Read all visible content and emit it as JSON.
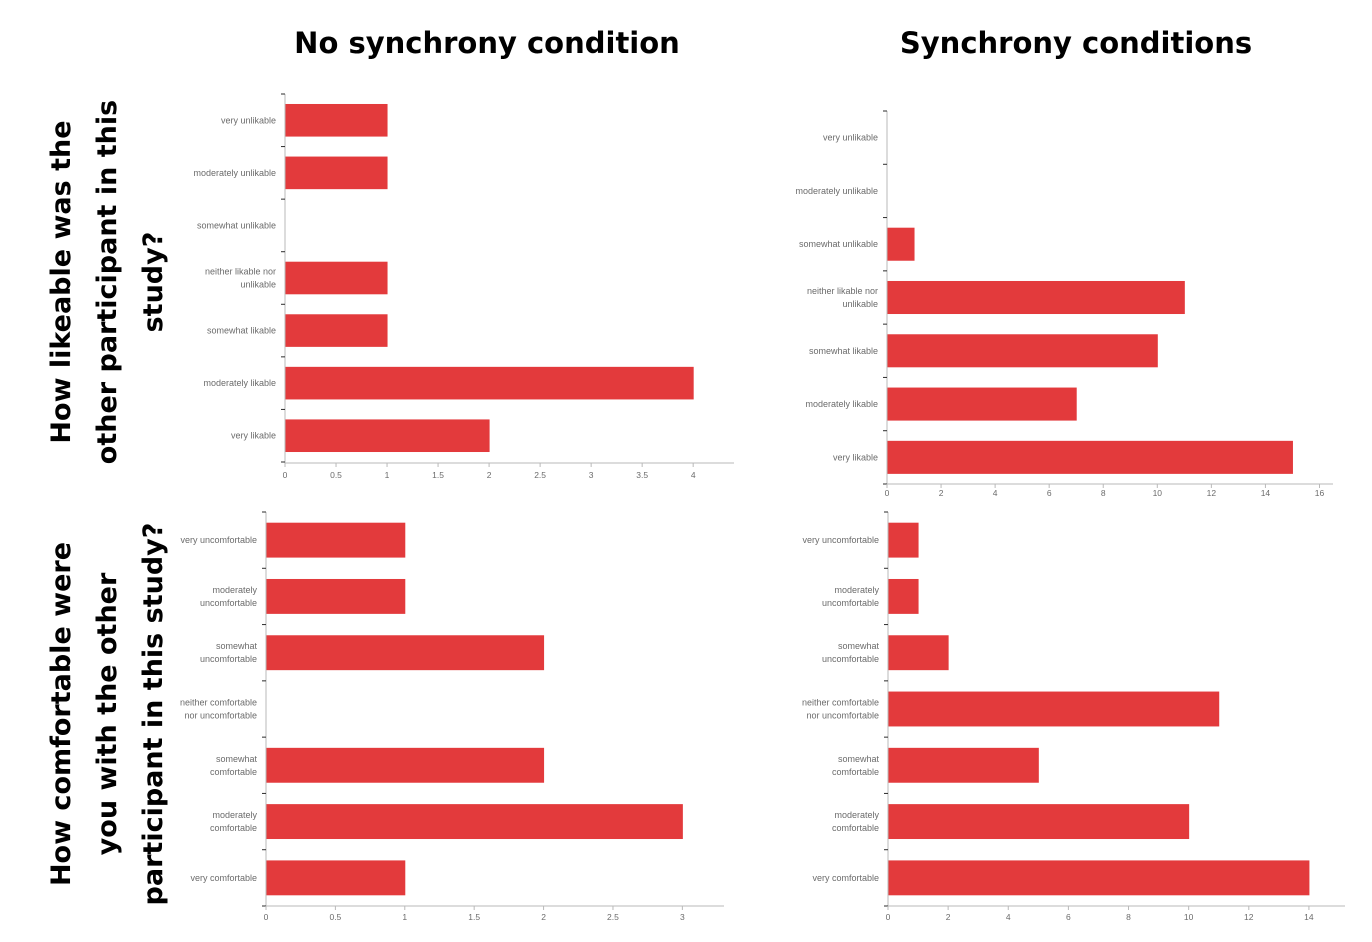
{
  "headers": {
    "col_left": "No synchrony condition",
    "col_right": "Synchrony conditions",
    "row_top": [
      "How likeable was the",
      "other participant in this",
      "study?"
    ],
    "row_bottom": [
      "How comfortable were",
      "you with the other",
      "participant in this study?"
    ]
  },
  "chart_data": [
    {
      "id": "likeable-no-sync",
      "type": "bar",
      "orientation": "horizontal",
      "categories": [
        [
          "very unlikable"
        ],
        [
          "moderately unlikable"
        ],
        [
          "somewhat unlikable"
        ],
        [
          "neither likable nor",
          "unlikable"
        ],
        [
          "somewhat likable"
        ],
        [
          "moderately likable"
        ],
        [
          "very likable"
        ]
      ],
      "values": [
        1,
        1,
        0,
        1,
        1,
        4,
        2
      ],
      "xlim": [
        0,
        4.4
      ],
      "xticks": [
        0,
        0.5,
        1,
        1.5,
        2,
        2.5,
        3,
        3.5,
        4
      ],
      "color": "#e33a3c"
    },
    {
      "id": "likeable-sync",
      "type": "bar",
      "orientation": "horizontal",
      "categories": [
        [
          "very unlikable"
        ],
        [
          "moderately unlikable"
        ],
        [
          "somewhat unlikable"
        ],
        [
          "neither likable nor",
          "unlikable"
        ],
        [
          "somewhat likable"
        ],
        [
          "moderately likable"
        ],
        [
          "very likable"
        ]
      ],
      "values": [
        0,
        0,
        1,
        11,
        10,
        7,
        15
      ],
      "xlim": [
        0,
        16.5
      ],
      "xticks": [
        0,
        2,
        4,
        6,
        8,
        10,
        12,
        14,
        16
      ],
      "color": "#e33a3c"
    },
    {
      "id": "comfortable-no-sync",
      "type": "bar",
      "orientation": "horizontal",
      "categories": [
        [
          "very uncomfortable"
        ],
        [
          "moderately",
          "uncomfortable"
        ],
        [
          "somewhat",
          "uncomfortable"
        ],
        [
          "neither comfortable",
          "nor uncomfortable"
        ],
        [
          "somewhat",
          "comfortable"
        ],
        [
          "moderately",
          "comfortable"
        ],
        [
          "very comfortable"
        ]
      ],
      "values": [
        1,
        1,
        2,
        0,
        2,
        3,
        1
      ],
      "xlim": [
        0,
        3.3
      ],
      "xticks": [
        0,
        0.5,
        1,
        1.5,
        2,
        2.5,
        3
      ],
      "color": "#e33a3c"
    },
    {
      "id": "comfortable-sync",
      "type": "bar",
      "orientation": "horizontal",
      "categories": [
        [
          "very uncomfortable"
        ],
        [
          "moderately",
          "uncomfortable"
        ],
        [
          "somewhat",
          "uncomfortable"
        ],
        [
          "neither comfortable",
          "nor uncomfortable"
        ],
        [
          "somewhat",
          "comfortable"
        ],
        [
          "moderately",
          "comfortable"
        ],
        [
          "very comfortable"
        ]
      ],
      "values": [
        1,
        1,
        2,
        11,
        5,
        10,
        14
      ],
      "xlim": [
        0,
        15.2
      ],
      "xticks": [
        0,
        2,
        4,
        6,
        8,
        10,
        12,
        14
      ],
      "color": "#e33a3c"
    }
  ]
}
